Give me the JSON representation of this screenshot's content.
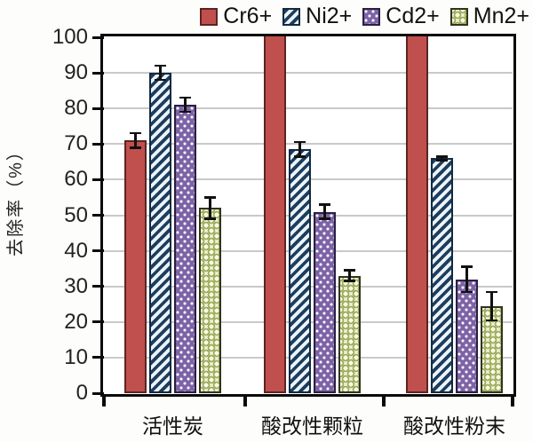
{
  "chart_data": {
    "type": "bar",
    "title": "",
    "xlabel": "",
    "ylabel": "去除率（%）",
    "ylim": [
      0,
      100
    ],
    "yticks": [
      0,
      10,
      20,
      30,
      40,
      50,
      60,
      70,
      80,
      90,
      100
    ],
    "grid": true,
    "legend_position": "top",
    "categories": [
      "活性炭",
      "酸改性颗粒",
      "酸改性粉末"
    ],
    "series": [
      {
        "name": "Cr6+",
        "key": "cr",
        "pattern": "solid",
        "color": "#c0504d",
        "border": "#5a2422",
        "values": [
          71,
          100,
          100
        ],
        "errors": [
          2,
          0,
          0
        ]
      },
      {
        "name": "Ni2+",
        "key": "ni",
        "pattern": "diagonal-stripes",
        "color": "#1c3e5e",
        "bg": "#edf3fa",
        "border": "#122a42",
        "values": [
          90,
          68.5,
          66
        ],
        "errors": [
          2,
          2,
          0.5
        ]
      },
      {
        "name": "Cd2+",
        "key": "cd",
        "pattern": "white-dots",
        "color": "#7d63a6",
        "dot": "#ffffff",
        "border": "#2a2040",
        "values": [
          81,
          51,
          32
        ],
        "errors": [
          2,
          2,
          3.5
        ]
      },
      {
        "name": "Mn2+",
        "key": "mn",
        "pattern": "sphere-circles",
        "color": "#eef3d3",
        "ring": "#9dab5c",
        "border": "#33331f",
        "values": [
          52,
          33,
          24.5
        ],
        "errors": [
          3,
          1.5,
          4
        ]
      }
    ],
    "error_bar_color": "#111111"
  }
}
